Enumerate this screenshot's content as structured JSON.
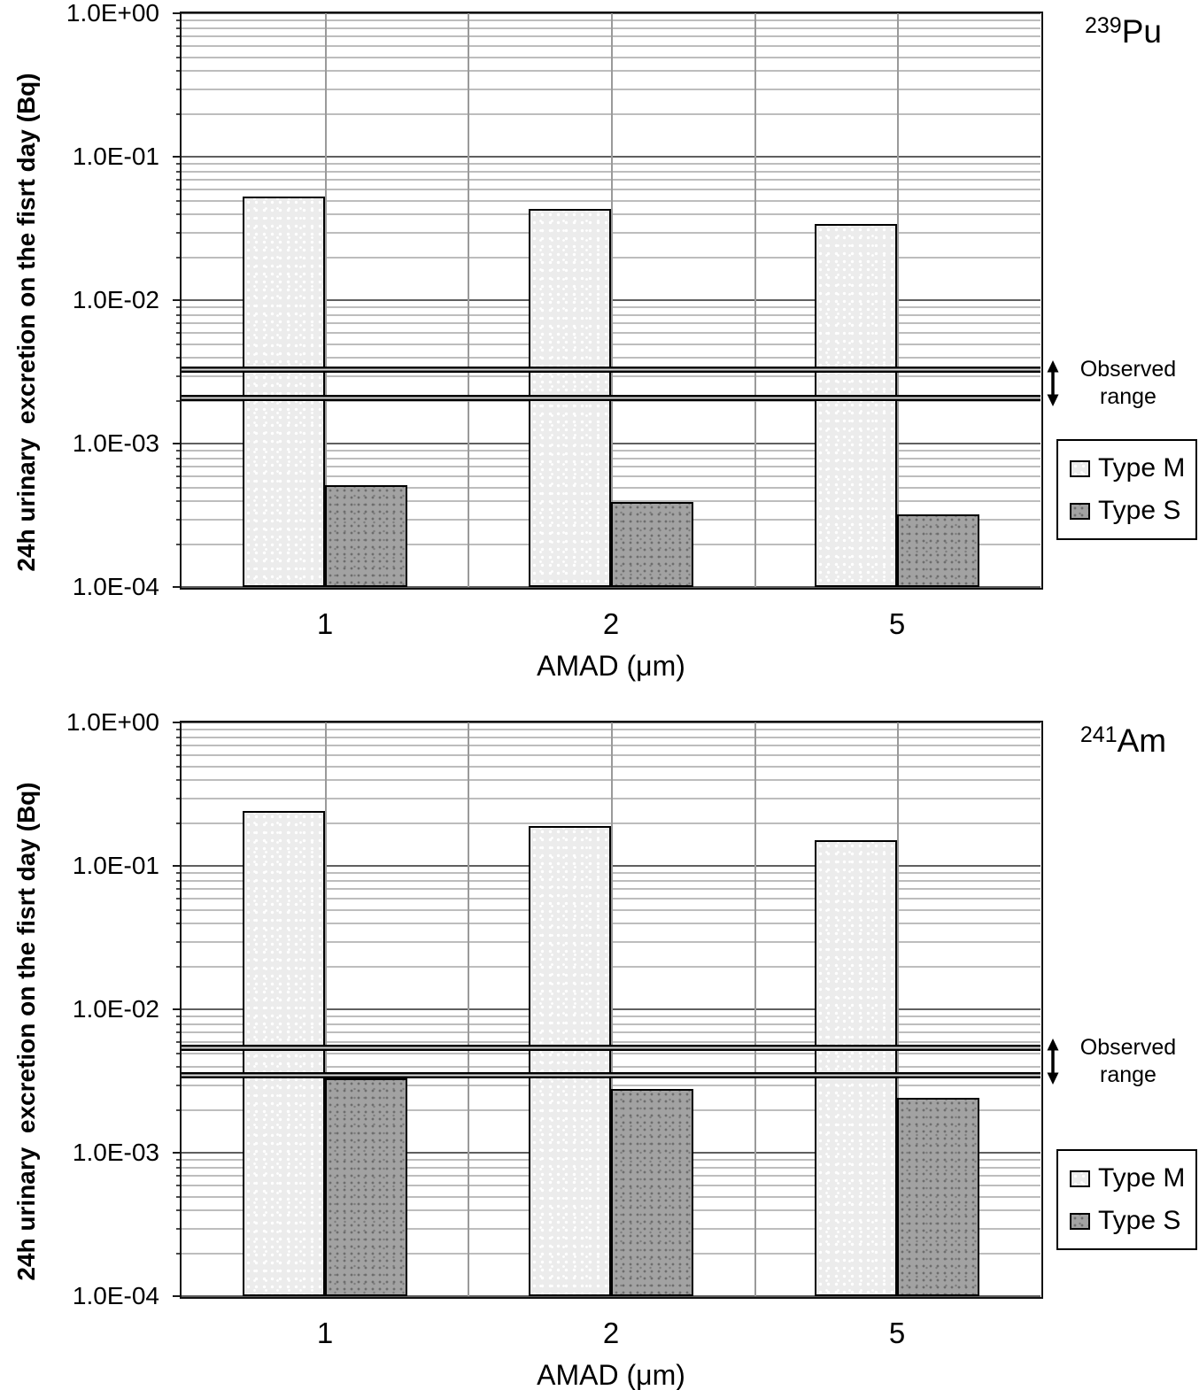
{
  "chart_data": [
    {
      "type": "bar",
      "isotope": {
        "mass": "239",
        "element": "Pu"
      },
      "categories": [
        "1",
        "2",
        "5"
      ],
      "series": [
        {
          "name": "Type M",
          "values": [
            0.053,
            0.043,
            0.034
          ]
        },
        {
          "name": "Type S",
          "values": [
            0.00051,
            0.00039,
            0.00032
          ]
        }
      ],
      "observed_range": {
        "high": 0.0033,
        "low": 0.0021,
        "label": [
          "Observed",
          "range"
        ]
      },
      "xlabel": "AMAD (μm)",
      "ylabel": "24h urinary  excretion on the fisrt day (Bq)",
      "yscale": "log",
      "ylim": [
        0.0001,
        1
      ],
      "yticks": [
        {
          "value": 1,
          "label": "1.0E+00"
        },
        {
          "value": 0.1,
          "label": "1.0E-01"
        },
        {
          "value": 0.01,
          "label": "1.0E-02"
        },
        {
          "value": 0.001,
          "label": "1.0E-03"
        },
        {
          "value": 0.0001,
          "label": "1.0E-04"
        }
      ],
      "legend_entries": [
        "Type M",
        "Type S"
      ],
      "legend_position": "right",
      "grid": "log-major-and-minor"
    },
    {
      "type": "bar",
      "isotope": {
        "mass": "241",
        "element": "Am"
      },
      "categories": [
        "1",
        "2",
        "5"
      ],
      "series": [
        {
          "name": "Type M",
          "values": [
            0.24,
            0.19,
            0.15
          ]
        },
        {
          "name": "Type S",
          "values": [
            0.0033,
            0.0028,
            0.0024
          ]
        }
      ],
      "observed_range": {
        "high": 0.0054,
        "low": 0.0035,
        "label": [
          "Observed",
          "range"
        ]
      },
      "xlabel": "AMAD (μm)",
      "ylabel": "24h urinary  excretion on the fisrt day (Bq)",
      "yscale": "log",
      "ylim": [
        0.0001,
        1
      ],
      "yticks": [
        {
          "value": 1,
          "label": "1.0E+00"
        },
        {
          "value": 0.1,
          "label": "1.0E-01"
        },
        {
          "value": 0.01,
          "label": "1.0E-02"
        },
        {
          "value": 0.001,
          "label": "1.0E-03"
        },
        {
          "value": 0.0001,
          "label": "1.0E-04"
        }
      ],
      "legend_entries": [
        "Type M",
        "Type S"
      ],
      "legend_position": "right",
      "grid": "log-major-and-minor"
    }
  ],
  "icons": {
    "observed_range_arrow": "double-headed-vertical-arrow"
  },
  "colors": {
    "background": "#ffffff",
    "type_m_fill": "#ececec",
    "type_s_fill": "#a2a2a2",
    "bar_border": "#000000",
    "grid_minor": "#bdbdbd",
    "grid_major": "#5f5f5f",
    "observed_line": "#000000",
    "text": "#000000"
  }
}
